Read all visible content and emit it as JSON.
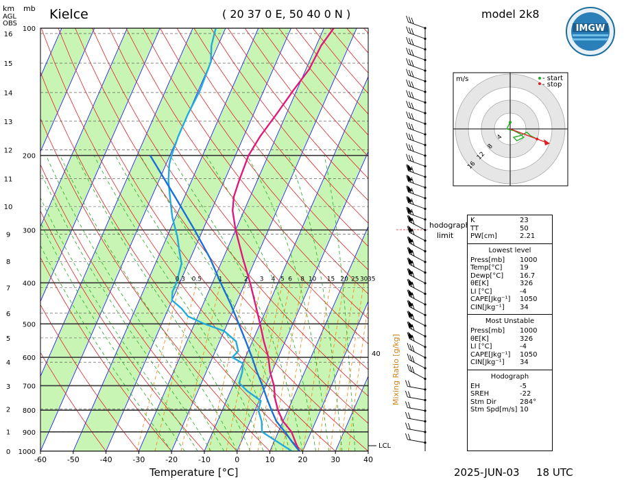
{
  "header": {
    "station": "Kielce",
    "coords": "( 20 37 0 E, 50 40 0 N )",
    "model": "model 2k8",
    "logo_text": "IMGW",
    "unit_km": "km",
    "unit_mb": "mb",
    "agl": "AGL",
    "obs": "OBS"
  },
  "footer": {
    "date": "2025-JUN-03",
    "time": "18 UTC"
  },
  "axis": {
    "xlabel": "Temperature [°C]",
    "mixing_label": "Mixing Ratio [g/kg]",
    "temp_ticks": [
      "-60",
      "-50",
      "-40",
      "-30",
      "-20",
      "-10",
      "0",
      "10",
      "20",
      "30",
      "40"
    ],
    "pressure_ticks": [
      "100",
      "200",
      "300",
      "400",
      "500",
      "600",
      "700",
      "800",
      "900",
      "1000"
    ],
    "km_ticks": [
      "0",
      "1",
      "2",
      "3",
      "4",
      "5",
      "6",
      "7",
      "8",
      "9",
      "10",
      "11",
      "12",
      "13",
      "14",
      "15",
      "16"
    ],
    "mixing_ticks": [
      "0.3",
      "0.5",
      "1",
      "2",
      "3",
      "4",
      "5",
      "6",
      "8",
      "10",
      "15",
      "20",
      "25",
      "30",
      "35"
    ],
    "lcl": "LCL",
    "hodograph_limit": "hodograph\nlimit",
    "label_40": "40"
  },
  "hodograph": {
    "unit": "m/s",
    "legend_start": "- start",
    "legend_stop": "- stop",
    "rings": [
      "4",
      "8",
      "12",
      "16"
    ]
  },
  "indices": {
    "top": [
      [
        "K",
        "23"
      ],
      [
        "TT",
        "50"
      ],
      [
        "PW[cm]",
        "2.21"
      ]
    ],
    "lowest_title": "Lowest level",
    "lowest": [
      [
        "Press[mb]",
        "1000"
      ],
      [
        "Temp[°C]",
        "19"
      ],
      [
        "Dewp[°C]",
        "16.7"
      ],
      [
        "θE[K]",
        "326"
      ],
      [
        "LI [°C]",
        "-4"
      ],
      [
        "CAPE[Jkg⁻¹]",
        "1050"
      ],
      [
        "CIN[Jkg⁻¹]",
        "34"
      ]
    ],
    "mu_title": "Most Unstable",
    "mu": [
      [
        "Press[mb]",
        "1000"
      ],
      [
        "θE[K]",
        "326"
      ],
      [
        "LI [°C]",
        "-4"
      ],
      [
        "CAPE[Jkg⁻¹]",
        "1050"
      ],
      [
        "CIN[Jkg⁻¹]",
        "34"
      ]
    ],
    "hodo_title": "Hodograph",
    "hodo": [
      [
        "EH",
        "-5"
      ],
      [
        "SREH",
        "-22"
      ],
      [
        "Stm Dir",
        "284°"
      ],
      [
        "Stm Spd[m/s]",
        "10"
      ]
    ]
  },
  "colors": {
    "temp": "#e0187a",
    "dewpoint": "#22aadd",
    "parcel": "#1a6fd6",
    "isotherm": "#2020ff",
    "dry_adiabat": "#e02020",
    "moist_adiabat": "#22aa22",
    "mixing": "#ff7f00",
    "band": "#c8f5b4",
    "mixing_label": "#d08010"
  },
  "chart_data": {
    "type": "line",
    "title": "Kielce",
    "xlabel": "Temperature [°C]",
    "ylabel": "mb",
    "xlim": [
      -60,
      40
    ],
    "ylim": [
      1000,
      100
    ],
    "log_pressure": true,
    "series": [
      {
        "points": [
          [
            1000,
            19
          ],
          [
            950,
            16.5
          ],
          [
            900,
            14
          ],
          [
            850,
            10
          ],
          [
            800,
            7
          ],
          [
            750,
            4.5
          ],
          [
            700,
            2.5
          ],
          [
            650,
            -0.5
          ],
          [
            600,
            -3
          ],
          [
            550,
            -6.5
          ],
          [
            500,
            -10
          ],
          [
            450,
            -14
          ],
          [
            400,
            -18.5
          ],
          [
            350,
            -24
          ],
          [
            300,
            -30
          ],
          [
            270,
            -33.5
          ],
          [
            250,
            -35
          ],
          [
            230,
            -35.5
          ],
          [
            200,
            -36
          ],
          [
            180,
            -35
          ],
          [
            160,
            -33
          ],
          [
            140,
            -31
          ],
          [
            125,
            -29
          ],
          [
            110,
            -28.5
          ],
          [
            100,
            -27
          ]
        ]
      },
      {
        "points": [
          [
            1000,
            16.7
          ],
          [
            950,
            11
          ],
          [
            900,
            5
          ],
          [
            850,
            3.5
          ],
          [
            800,
            1
          ],
          [
            760,
            0.5
          ],
          [
            720,
            -5
          ],
          [
            690,
            -8.5
          ],
          [
            650,
            -9
          ],
          [
            620,
            -10
          ],
          [
            600,
            -14
          ],
          [
            580,
            -13
          ],
          [
            550,
            -15
          ],
          [
            520,
            -20
          ],
          [
            500,
            -27
          ],
          [
            480,
            -33
          ],
          [
            460,
            -36
          ],
          [
            440,
            -40
          ],
          [
            420,
            -41
          ],
          [
            400,
            -41
          ],
          [
            380,
            -41.5
          ],
          [
            360,
            -42
          ],
          [
            340,
            -44
          ],
          [
            310,
            -47
          ],
          [
            280,
            -51
          ],
          [
            250,
            -54.5
          ],
          [
            230,
            -57
          ],
          [
            210,
            -59
          ],
          [
            200,
            -59.5
          ],
          [
            180,
            -60
          ],
          [
            160,
            -60
          ],
          [
            140,
            -59.5
          ],
          [
            120,
            -60
          ],
          [
            110,
            -62
          ],
          [
            100,
            -63
          ]
        ]
      },
      {
        "points": [
          [
            1000,
            19
          ],
          [
            950,
            15.5
          ],
          [
            900,
            12
          ],
          [
            850,
            8
          ],
          [
            800,
            5
          ],
          [
            750,
            2
          ],
          [
            700,
            -1
          ],
          [
            650,
            -4.5
          ],
          [
            600,
            -8
          ],
          [
            550,
            -12
          ],
          [
            500,
            -16.5
          ],
          [
            450,
            -21.5
          ],
          [
            400,
            -27.5
          ],
          [
            350,
            -34
          ],
          [
            300,
            -42.5
          ],
          [
            250,
            -53
          ],
          [
            200,
            -66
          ]
        ]
      }
    ],
    "hodograph_points": [
      [
        0,
        2
      ],
      [
        -1,
        0
      ],
      [
        1,
        -0.5
      ],
      [
        2,
        -1
      ],
      [
        3,
        -1.5
      ],
      [
        4,
        -2.5
      ],
      [
        2,
        -3.5
      ],
      [
        1,
        -2.5
      ],
      [
        3,
        -2
      ],
      [
        5,
        -1
      ],
      [
        6,
        -2
      ],
      [
        8,
        -3
      ]
    ],
    "storm_motion": [
      8,
      -3
    ]
  }
}
